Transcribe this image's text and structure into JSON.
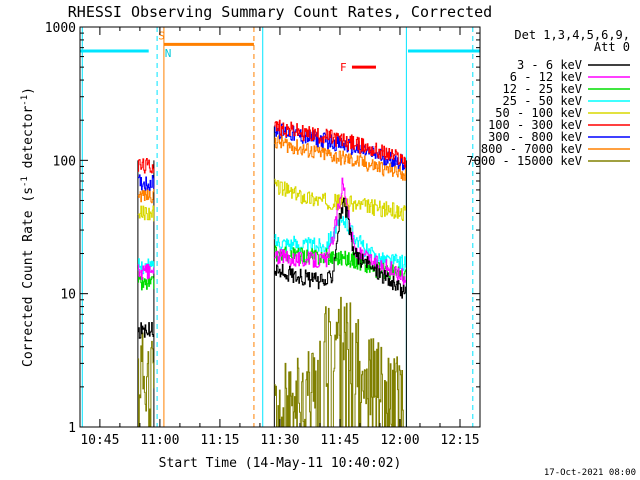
{
  "chart_data": {
    "type": "line",
    "title": "RHESSI Observing Summary Count Rates, Corrected",
    "xlabel": "Start Time (14-May-11 10:40:02)",
    "ylabel": "Corrected Count Rate (s⁻¹ detector⁻¹)",
    "ylabel_main": "Corrected Count Rate (s",
    "ylabel_sup1": "-1",
    "ylabel_mid": " detector",
    "ylabel_sup2": "-1",
    "ylabel_end": ")",
    "yscale": "log",
    "ylim": [
      1,
      1000
    ],
    "xlim_minutes": [
      40.03,
      140
    ],
    "yticks": [
      {
        "value": 1,
        "label": "1"
      },
      {
        "value": 10,
        "label": "10"
      },
      {
        "value": 100,
        "label": "100"
      },
      {
        "value": 1000,
        "label": "1000"
      }
    ],
    "xticks": [
      {
        "minute": 45,
        "label": "10:45"
      },
      {
        "minute": 60,
        "label": "11:00"
      },
      {
        "minute": 75,
        "label": "11:15"
      },
      {
        "minute": 90,
        "label": "11:30"
      },
      {
        "minute": 105,
        "label": "11:45"
      },
      {
        "minute": 120,
        "label": "12:00"
      },
      {
        "minute": 135,
        "label": "12:15"
      }
    ],
    "legend_header": [
      "Det 1,3,4,5,6,9,",
      "Att 0"
    ],
    "legend_position": "right",
    "series": [
      {
        "name": "3 - 6 keV",
        "color": "#000000",
        "segments": [
          [
            [
              54.5,
              5.3
            ],
            [
              58.5,
              5.3
            ]
          ],
          [
            [
              88.6,
              15
            ],
            [
              97,
              13
            ],
            [
              101,
              12
            ],
            [
              103,
              14
            ],
            [
              105,
              40
            ],
            [
              106,
              47
            ],
            [
              107,
              35
            ],
            [
              108,
              22
            ],
            [
              110,
              18
            ],
            [
              114,
              15
            ],
            [
              118,
              12
            ],
            [
              121.5,
              10
            ]
          ]
        ]
      },
      {
        "name": "6 - 12 keV",
        "color": "#ff00ff",
        "segments": [
          [
            [
              54.5,
              14.5
            ],
            [
              58.5,
              14.5
            ]
          ],
          [
            [
              88.6,
              19
            ],
            [
              97,
              18
            ],
            [
              102,
              18
            ],
            [
              104,
              35
            ],
            [
              105.5,
              68
            ],
            [
              106.5,
              55
            ],
            [
              107.5,
              30
            ],
            [
              109,
              20
            ],
            [
              114,
              17
            ],
            [
              118,
              15
            ],
            [
              121.5,
              13
            ]
          ]
        ]
      },
      {
        "name": "12 - 25 keV",
        "color": "#00dd00",
        "segments": [
          [
            [
              54.5,
              12
            ],
            [
              58.5,
              12
            ]
          ],
          [
            [
              88.6,
              20
            ],
            [
              98,
              19
            ],
            [
              104,
              19
            ],
            [
              108,
              18
            ],
            [
              114,
              15
            ],
            [
              121.5,
              14
            ]
          ]
        ]
      },
      {
        "name": "25 - 50 keV",
        "color": "#00ffff",
        "segments": [
          [
            [
              54.5,
              16
            ],
            [
              58.5,
              16
            ]
          ],
          [
            [
              88.6,
              25
            ],
            [
              96,
              23
            ],
            [
              101,
              23
            ],
            [
              104,
              30
            ],
            [
              106,
              36
            ],
            [
              108,
              29
            ],
            [
              112,
              20
            ],
            [
              116,
              18
            ],
            [
              121.5,
              17
            ]
          ]
        ]
      },
      {
        "name": "50 - 100 keV",
        "color": "#d8d800",
        "segments": [
          [
            [
              54.5,
              40
            ],
            [
              58.5,
              40
            ]
          ],
          [
            [
              88.6,
              65
            ],
            [
              94,
              55
            ],
            [
              100,
              50
            ],
            [
              106,
              48
            ],
            [
              112,
              45
            ],
            [
              118,
              42
            ],
            [
              121.5,
              40
            ]
          ]
        ]
      },
      {
        "name": "100 - 300 keV",
        "color": "#ff0000",
        "segments": [
          [
            [
              54.5,
              90
            ],
            [
              58.5,
              90
            ]
          ],
          [
            [
              88.6,
              180
            ],
            [
              96,
              160
            ],
            [
              102,
              150
            ],
            [
              108,
              135
            ],
            [
              114,
              118
            ],
            [
              121.5,
              100
            ]
          ]
        ]
      },
      {
        "name": "300 - 800 keV",
        "color": "#0000ff",
        "segments": [
          [
            [
              54.5,
              68
            ],
            [
              58.5,
              68
            ]
          ],
          [
            [
              88.6,
              170
            ],
            [
              96,
              150
            ],
            [
              102,
              140
            ],
            [
              108,
              125
            ],
            [
              114,
              110
            ],
            [
              121.5,
              95
            ]
          ]
        ]
      },
      {
        "name": "800 - 7000 keV",
        "color": "#ff8000",
        "segments": [
          [
            [
              54.5,
              55
            ],
            [
              58.5,
              55
            ]
          ],
          [
            [
              88.6,
              140
            ],
            [
              96,
              120
            ],
            [
              102,
              110
            ],
            [
              108,
              100
            ],
            [
              114,
              90
            ],
            [
              121.5,
              80
            ]
          ]
        ]
      },
      {
        "name": "7000 - 15000 keV",
        "color": "#808000",
        "segments": [
          [
            [
              54.5,
              2.6
            ],
            [
              58.5,
              2.6
            ]
          ],
          [
            [
              88.6,
              1.4
            ],
            [
              94,
              1.6
            ],
            [
              98,
              2.2
            ],
            [
              100,
              3.5
            ],
            [
              104,
              5
            ],
            [
              108,
              4
            ],
            [
              112,
              2.5
            ],
            [
              116,
              2
            ],
            [
              121.5,
              1.6
            ]
          ]
        ]
      }
    ],
    "bars": [
      {
        "kind": "night",
        "color": "#00e5ff",
        "y": 660,
        "start": 40.03,
        "end": 57.2
      },
      {
        "kind": "saa",
        "color": "#ff8000",
        "y": 740,
        "start": 61,
        "end": 83.5
      },
      {
        "kind": "flare",
        "color": "#ff0000",
        "y": 500,
        "start": 108,
        "end": 114
      },
      {
        "kind": "night",
        "color": "#00e5ff",
        "y": 660,
        "start": 122,
        "end": 140
      }
    ],
    "bar_labels": [
      {
        "text": "S",
        "color": "#ff8000",
        "minute": 59.6,
        "y": 860
      },
      {
        "text": "N",
        "color": "#00c8d8",
        "minute": 61.2,
        "y": 640
      },
      {
        "text": "F",
        "color": "#ff0000",
        "minute": 105,
        "y": 500
      }
    ],
    "vlines": [
      {
        "minute": 40.6,
        "color": "#00e5ff",
        "dashed": false
      },
      {
        "minute": 59.3,
        "color": "#00e5ff",
        "dashed": true
      },
      {
        "minute": 61.0,
        "color": "#ff8000",
        "dashed": false
      },
      {
        "minute": 83.5,
        "color": "#ff8000",
        "dashed": true
      },
      {
        "minute": 85.7,
        "color": "#00e5ff",
        "dashed": false
      },
      {
        "minute": 121.6,
        "color": "#00e5ff",
        "dashed": false
      },
      {
        "minute": 138.2,
        "color": "#00e5ff",
        "dashed": true
      }
    ],
    "gap_edges": [
      {
        "minute": 54.5,
        "top": 100
      },
      {
        "minute": 58.5,
        "top": 100
      },
      {
        "minute": 88.6,
        "top": 180
      },
      {
        "minute": 121.6,
        "top": 100
      }
    ]
  },
  "footer": {
    "date": "17-Oct-2021 08:00"
  }
}
